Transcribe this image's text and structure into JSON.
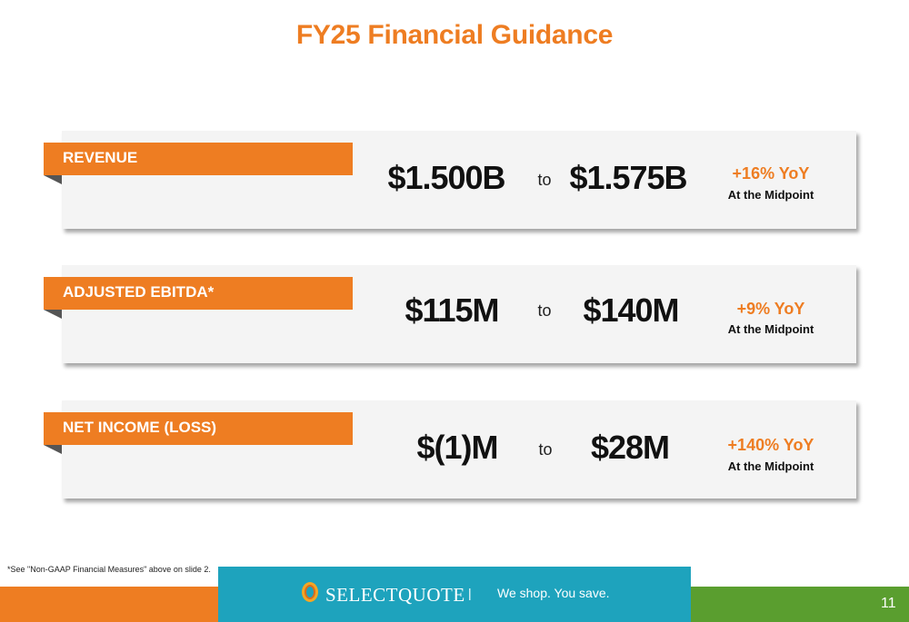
{
  "title": "FY25 Financial Guidance",
  "rows": [
    {
      "label": "REVENUE",
      "low": "$1.500B",
      "to": "to",
      "high": "$1.575B",
      "yoy": "+16% YoY",
      "note": "At the Midpoint"
    },
    {
      "label": "ADJUSTED EBITDA*",
      "low": "$115M",
      "to": "to",
      "high": "$140M",
      "yoy": "+9% YoY",
      "note": "At the Midpoint"
    },
    {
      "label": "NET INCOME (LOSS)",
      "low": "$(1)M",
      "to": "to",
      "high": "$28M",
      "yoy": "+140% YoY",
      "note": "At the Midpoint"
    }
  ],
  "footnote": "*See \"Non-GAAP Financial Measures\" above on slide 2.",
  "footer": {
    "brand": "SELECTQUOTE",
    "separator": "|",
    "tagline": "We shop. You save.",
    "page_number": "11"
  },
  "colors": {
    "accent": "#ee7d22",
    "teal": "#1ea3bd",
    "green": "#5a9e2f"
  }
}
